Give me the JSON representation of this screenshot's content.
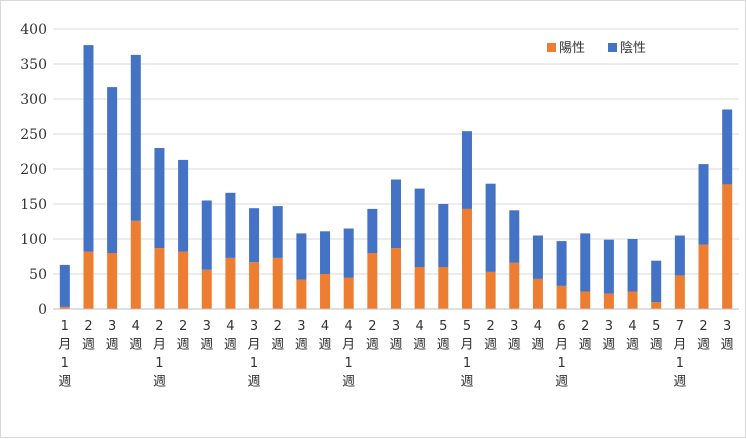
{
  "chart_data": {
    "type": "bar",
    "stacked": true,
    "ylim": [
      0,
      400
    ],
    "yticks": [
      0,
      50,
      100,
      150,
      200,
      250,
      300,
      350,
      400
    ],
    "grid": true,
    "legend_position": "top-right",
    "colors": {
      "positive": "#ED7D31",
      "negative": "#4472C4"
    },
    "categories": [
      [
        "1",
        "月",
        "1",
        "週"
      ],
      [
        "2",
        "週"
      ],
      [
        "3",
        "週"
      ],
      [
        "4",
        "週"
      ],
      [
        "2",
        "月",
        "1",
        "週"
      ],
      [
        "2",
        "週"
      ],
      [
        "3",
        "週"
      ],
      [
        "4",
        "週"
      ],
      [
        "3",
        "月",
        "1",
        "週"
      ],
      [
        "2",
        "週"
      ],
      [
        "3",
        "週"
      ],
      [
        "4",
        "週"
      ],
      [
        "4",
        "月",
        "1",
        "週"
      ],
      [
        "2",
        "週"
      ],
      [
        "3",
        "週"
      ],
      [
        "4",
        "週"
      ],
      [
        "5",
        "週"
      ],
      [
        "5",
        "月",
        "1",
        "週"
      ],
      [
        "2",
        "週"
      ],
      [
        "3",
        "週"
      ],
      [
        "4",
        "週"
      ],
      [
        "6",
        "月",
        "1",
        "週"
      ],
      [
        "2",
        "週"
      ],
      [
        "3",
        "週"
      ],
      [
        "4",
        "週"
      ],
      [
        "5",
        "週"
      ],
      [
        "7",
        "月",
        "1",
        "週"
      ],
      [
        "2",
        "週"
      ],
      [
        "3",
        "週"
      ]
    ],
    "series": [
      {
        "name": "陽性",
        "color": "#ED7D31",
        "values": [
          3,
          82,
          80,
          126,
          87,
          82,
          56,
          73,
          67,
          73,
          42,
          50,
          45,
          80,
          87,
          60,
          60,
          143,
          53,
          66,
          43,
          33,
          25,
          22,
          25,
          10,
          48,
          92,
          178
        ]
      },
      {
        "name": "陰性",
        "color": "#4472C4",
        "values": [
          60,
          295,
          237,
          237,
          143,
          131,
          99,
          93,
          77,
          74,
          66,
          61,
          70,
          63,
          98,
          112,
          90,
          111,
          126,
          75,
          62,
          64,
          83,
          77,
          75,
          59,
          57,
          115,
          107
        ]
      }
    ]
  }
}
